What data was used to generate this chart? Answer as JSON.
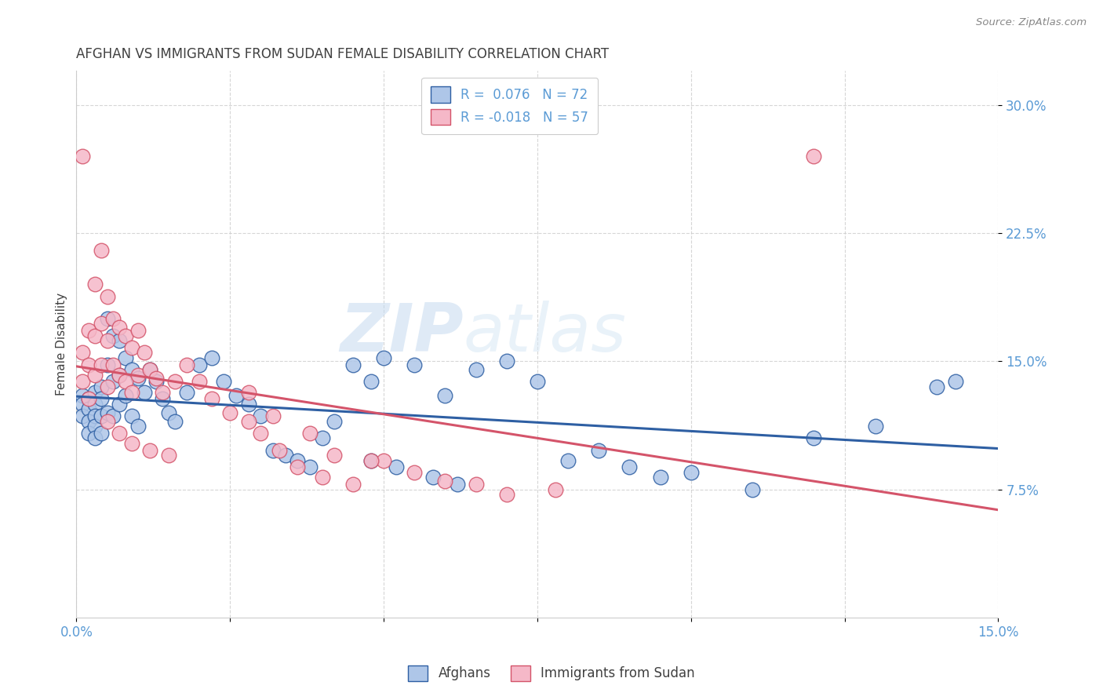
{
  "title": "AFGHAN VS IMMIGRANTS FROM SUDAN FEMALE DISABILITY CORRELATION CHART",
  "source": "Source: ZipAtlas.com",
  "ylabel": "Female Disability",
  "xlim": [
    0.0,
    0.15
  ],
  "ylim": [
    0.0,
    0.32
  ],
  "yticks": [
    0.075,
    0.15,
    0.225,
    0.3
  ],
  "ytick_labels": [
    "7.5%",
    "15.0%",
    "22.5%",
    "30.0%"
  ],
  "xtick_positions": [
    0.0,
    0.025,
    0.05,
    0.075,
    0.1,
    0.125,
    0.15
  ],
  "legend_r1": "R =  0.076",
  "legend_n1": "N = 72",
  "legend_r2": "R = -0.018",
  "legend_n2": "N = 57",
  "color_afghan": "#aec6e8",
  "color_sudan": "#f5b8c8",
  "line_color_afghan": "#2e5fa3",
  "line_color_sudan": "#d4546a",
  "watermark_zip": "ZIP",
  "watermark_atlas": "atlas",
  "title_color": "#404040",
  "axis_color": "#5b9bd5",
  "background_color": "#ffffff",
  "grid_color": "#cccccc",
  "afghan_x": [
    0.001,
    0.001,
    0.001,
    0.002,
    0.002,
    0.002,
    0.002,
    0.003,
    0.003,
    0.003,
    0.003,
    0.003,
    0.004,
    0.004,
    0.004,
    0.004,
    0.005,
    0.005,
    0.005,
    0.006,
    0.006,
    0.006,
    0.007,
    0.007,
    0.007,
    0.008,
    0.008,
    0.009,
    0.009,
    0.01,
    0.01,
    0.011,
    0.012,
    0.013,
    0.014,
    0.015,
    0.016,
    0.018,
    0.02,
    0.022,
    0.024,
    0.026,
    0.028,
    0.03,
    0.032,
    0.034,
    0.036,
    0.038,
    0.04,
    0.042,
    0.045,
    0.048,
    0.05,
    0.055,
    0.06,
    0.065,
    0.07,
    0.075,
    0.08,
    0.085,
    0.09,
    0.095,
    0.1,
    0.11,
    0.12,
    0.13,
    0.14,
    0.143,
    0.048,
    0.052,
    0.058,
    0.062
  ],
  "afghan_y": [
    0.13,
    0.125,
    0.118,
    0.128,
    0.122,
    0.115,
    0.108,
    0.132,
    0.125,
    0.118,
    0.112,
    0.105,
    0.135,
    0.128,
    0.118,
    0.108,
    0.175,
    0.148,
    0.12,
    0.165,
    0.138,
    0.118,
    0.162,
    0.142,
    0.125,
    0.152,
    0.13,
    0.145,
    0.118,
    0.14,
    0.112,
    0.132,
    0.145,
    0.138,
    0.128,
    0.12,
    0.115,
    0.132,
    0.148,
    0.152,
    0.138,
    0.13,
    0.125,
    0.118,
    0.098,
    0.095,
    0.092,
    0.088,
    0.105,
    0.115,
    0.148,
    0.138,
    0.152,
    0.148,
    0.13,
    0.145,
    0.15,
    0.138,
    0.092,
    0.098,
    0.088,
    0.082,
    0.085,
    0.075,
    0.105,
    0.112,
    0.135,
    0.138,
    0.092,
    0.088,
    0.082,
    0.078
  ],
  "sudan_x": [
    0.001,
    0.001,
    0.001,
    0.002,
    0.002,
    0.002,
    0.003,
    0.003,
    0.003,
    0.004,
    0.004,
    0.004,
    0.005,
    0.005,
    0.005,
    0.006,
    0.006,
    0.007,
    0.007,
    0.008,
    0.008,
    0.009,
    0.009,
    0.01,
    0.01,
    0.011,
    0.012,
    0.013,
    0.014,
    0.016,
    0.018,
    0.02,
    0.022,
    0.025,
    0.028,
    0.03,
    0.033,
    0.036,
    0.04,
    0.045,
    0.05,
    0.028,
    0.032,
    0.038,
    0.042,
    0.048,
    0.055,
    0.06,
    0.065,
    0.07,
    0.078,
    0.12,
    0.005,
    0.007,
    0.009,
    0.012,
    0.015
  ],
  "sudan_y": [
    0.27,
    0.155,
    0.138,
    0.168,
    0.148,
    0.128,
    0.195,
    0.165,
    0.142,
    0.215,
    0.172,
    0.148,
    0.188,
    0.162,
    0.135,
    0.175,
    0.148,
    0.17,
    0.142,
    0.165,
    0.138,
    0.158,
    0.132,
    0.168,
    0.142,
    0.155,
    0.145,
    0.14,
    0.132,
    0.138,
    0.148,
    0.138,
    0.128,
    0.12,
    0.115,
    0.108,
    0.098,
    0.088,
    0.082,
    0.078,
    0.092,
    0.132,
    0.118,
    0.108,
    0.095,
    0.092,
    0.085,
    0.08,
    0.078,
    0.072,
    0.075,
    0.27,
    0.115,
    0.108,
    0.102,
    0.098,
    0.095
  ]
}
